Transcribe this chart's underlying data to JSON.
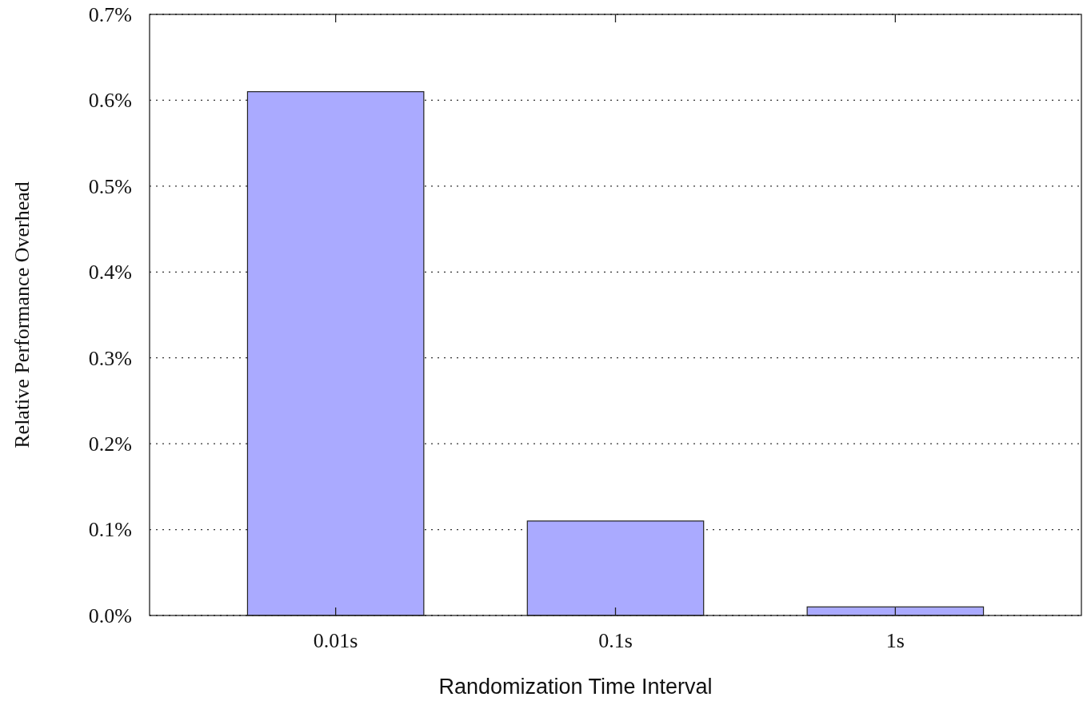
{
  "chart_data": {
    "type": "bar",
    "xlabel": "Randomization Time Interval",
    "ylabel": "Relative Performance Overhead",
    "categories": [
      "0.01s",
      "0.1s",
      "1s"
    ],
    "values": [
      0.61,
      0.11,
      0.01
    ],
    "color": "#aaaaff",
    "ylim": [
      0,
      0.7
    ],
    "yticks": [
      {
        "value": 0,
        "label": "0.0%"
      },
      {
        "value": 0.1,
        "label": "0.1%"
      },
      {
        "value": 0.2,
        "label": "0.2%"
      },
      {
        "value": 0.3,
        "label": "0.3%"
      },
      {
        "value": 0.4,
        "label": "0.4%"
      },
      {
        "value": 0.5,
        "label": "0.5%"
      },
      {
        "value": 0.6,
        "label": "0.6%"
      },
      {
        "value": 0.7,
        "label": "0.7%"
      }
    ],
    "grid": "y"
  }
}
